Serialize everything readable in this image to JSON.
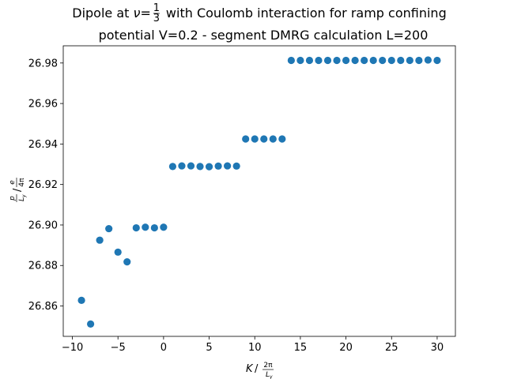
{
  "chart_data": {
    "type": "scatter",
    "title_line1_pre": "Dipole at ",
    "title_nu": "ν",
    "title_eq": "=",
    "title_frac_num": "1",
    "title_frac_den": "3",
    "title_line1_post": " with Coulomb interaction for ramp confining",
    "title_line2": "potential V=0.2 - segment DMRG calculation L=200",
    "xlabel": {
      "K": "K",
      "slash": "/",
      "num": "2π",
      "den_L": "L",
      "den_sub": "y"
    },
    "ylabel": {
      "num_p": "p",
      "den_L": "L",
      "den_sub": "y",
      "slash": "/",
      "num_e": "e",
      "den_4pi": "4π"
    },
    "xlim": [
      -11,
      32
    ],
    "ylim": [
      26.845,
      26.9885
    ],
    "xticks": [
      -10,
      -5,
      0,
      5,
      10,
      15,
      20,
      25,
      30
    ],
    "yticks": [
      26.86,
      26.88,
      26.9,
      26.92,
      26.94,
      26.96,
      26.98
    ],
    "ytick_labels": [
      "26.86",
      "26.88",
      "26.90",
      "26.92",
      "26.94",
      "26.96",
      "26.98"
    ],
    "grid": false,
    "marker_color": "#1f77b4",
    "x": [
      -9,
      -8,
      -7,
      -6,
      -5,
      -4,
      -3,
      -2,
      -1,
      0,
      1,
      2,
      3,
      4,
      5,
      6,
      7,
      8,
      9,
      10,
      11,
      12,
      13,
      14,
      15,
      16,
      17,
      18,
      19,
      20,
      21,
      22,
      23,
      24,
      25,
      26,
      27,
      28,
      29,
      30
    ],
    "y": [
      26.8628,
      26.8511,
      26.8925,
      26.8982,
      26.8866,
      26.8818,
      26.8986,
      26.8989,
      26.8986,
      26.8989,
      26.9289,
      26.9292,
      26.9292,
      26.9289,
      26.9288,
      26.9291,
      26.9292,
      26.9291,
      26.9425,
      26.9425,
      26.9425,
      26.9425,
      26.9425,
      26.9813,
      26.9813,
      26.9813,
      26.9813,
      26.9813,
      26.9813,
      26.9813,
      26.9813,
      26.9813,
      26.9813,
      26.9813,
      26.9813,
      26.9813,
      26.9813,
      26.9813,
      26.9815,
      26.9813
    ]
  }
}
